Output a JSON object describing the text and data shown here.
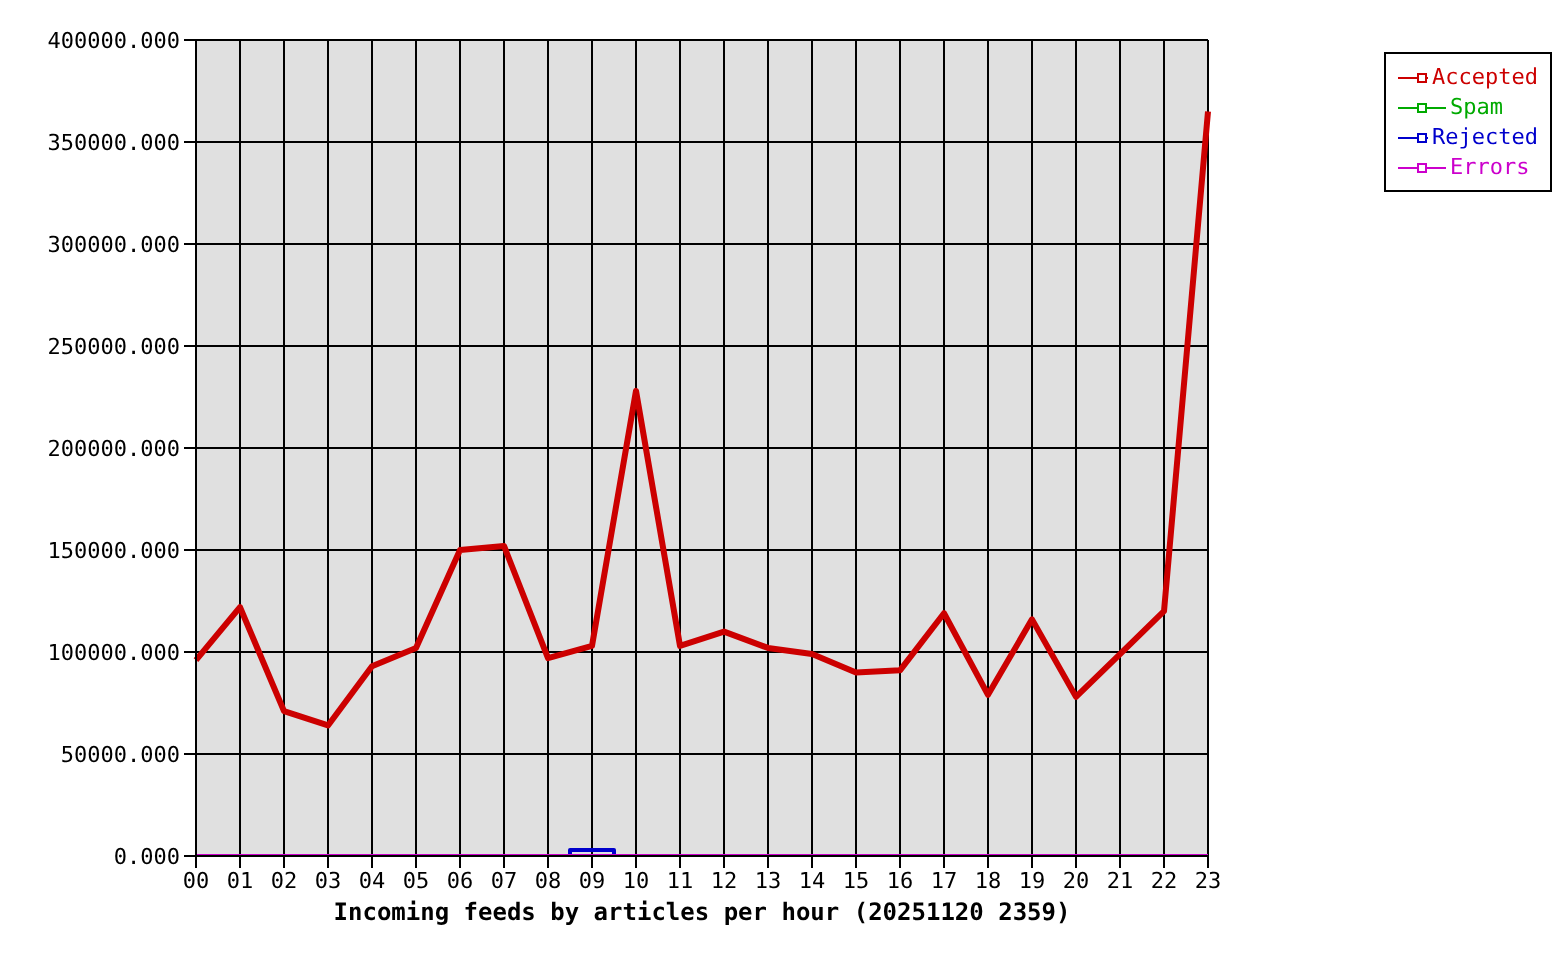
{
  "chart_data": {
    "type": "line",
    "xlabel": "Incoming feeds by articles per hour (20251120 2359)",
    "categories": [
      "00",
      "01",
      "02",
      "03",
      "04",
      "05",
      "06",
      "07",
      "08",
      "09",
      "10",
      "11",
      "12",
      "13",
      "14",
      "15",
      "16",
      "17",
      "18",
      "19",
      "20",
      "21",
      "22",
      "23"
    ],
    "series": [
      {
        "name": "Accepted",
        "color": "#cc0000",
        "values": [
          96000,
          122000,
          71000,
          64000,
          93000,
          102000,
          150000,
          152000,
          97000,
          103000,
          228000,
          103000,
          110000,
          102000,
          99000,
          90000,
          91000,
          119000,
          79000,
          116000,
          78000,
          99000,
          120000,
          365000
        ]
      },
      {
        "name": "Spam",
        "color": "#00aa00",
        "values": [
          null,
          null,
          null,
          null,
          null,
          null,
          null,
          null,
          null,
          null,
          null,
          null,
          null,
          null,
          null,
          null,
          null,
          null,
          null,
          null,
          null,
          null,
          null,
          null
        ]
      },
      {
        "name": "Rejected",
        "type": "step",
        "color": "#0000cc",
        "values": [
          null,
          null,
          null,
          null,
          null,
          null,
          null,
          null,
          0,
          3000,
          0,
          null,
          null,
          null,
          null,
          null,
          null,
          null,
          null,
          null,
          null,
          null,
          null,
          null
        ]
      },
      {
        "name": "Errors",
        "color": "#cc00cc",
        "values": [
          0,
          0,
          0,
          0,
          0,
          0,
          0,
          0,
          0,
          0,
          0,
          0,
          0,
          0,
          0,
          0,
          0,
          0,
          0,
          0,
          0,
          0,
          0,
          0
        ]
      }
    ],
    "ylim": [
      0,
      400000
    ],
    "yticks": [
      {
        "value": 0,
        "label": "0.000"
      },
      {
        "value": 50000,
        "label": "50000.000"
      },
      {
        "value": 100000,
        "label": "100000.000"
      },
      {
        "value": 150000,
        "label": "150000.000"
      },
      {
        "value": 200000,
        "label": "200000.000"
      },
      {
        "value": 250000,
        "label": "250000.000"
      },
      {
        "value": 300000,
        "label": "300000.000"
      },
      {
        "value": 350000,
        "label": "350000.000"
      },
      {
        "value": 400000,
        "label": "400000.000"
      }
    ],
    "grid": true,
    "legend": "top right",
    "marker": "none",
    "line_style": "solid"
  }
}
